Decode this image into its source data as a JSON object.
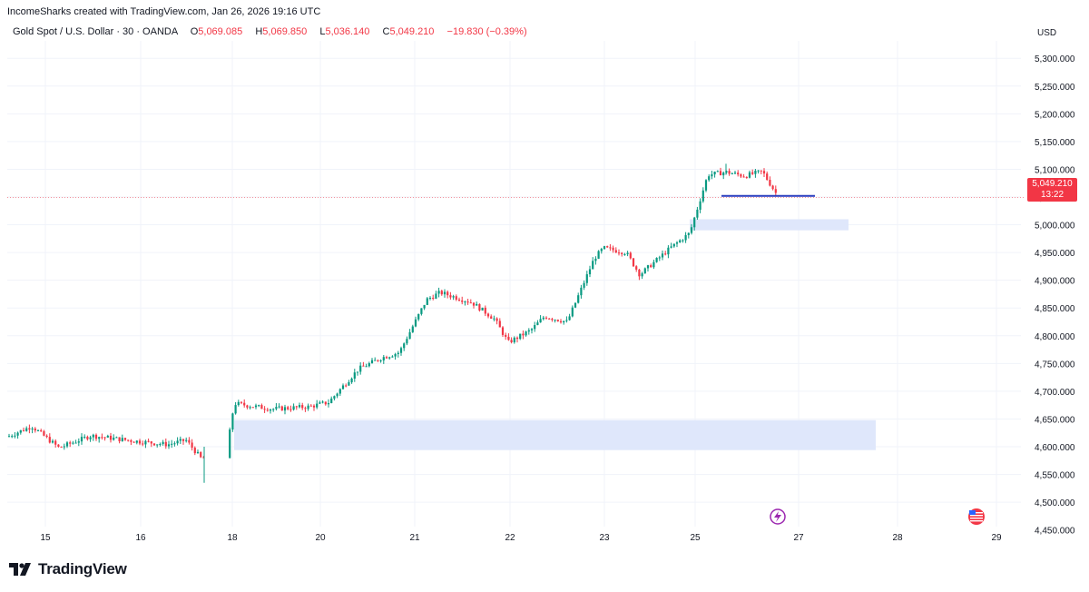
{
  "header": {
    "credit": "IncomeSharks created with TradingView.com, Jan 26, 2026 19:16 UTC",
    "symbol": "Gold Spot / U.S. Dollar · 30 · OANDA",
    "open_label": "O",
    "open": "5,069.085",
    "high_label": "H",
    "high": "5,069.850",
    "low_label": "L",
    "low": "5,036.140",
    "close_label": "C",
    "close": "5,049.210",
    "change": "−19.830 (−0.39%)",
    "currency": "USD"
  },
  "price_box": {
    "price": "5,049.210",
    "countdown": "13:22"
  },
  "brand": {
    "name": "TradingView"
  },
  "colors": {
    "up": "#089981",
    "down": "#f23645",
    "zone": "#dfe7fb",
    "level_line": "#2a3dbf",
    "grid": "#f0f3fa"
  },
  "chart_data": {
    "type": "candlestick",
    "ylim": [
      4425,
      5310
    ],
    "y_ticks": [
      "4,450.000",
      "4,500.000",
      "4,550.000",
      "4,600.000",
      "4,650.000",
      "4,700.000",
      "4,750.000",
      "4,800.000",
      "4,850.000",
      "4,900.000",
      "4,950.000",
      "5,000.000",
      "5,050.000",
      "5,100.000",
      "5,150.000",
      "5,200.000",
      "5,250.000",
      "5,300.000"
    ],
    "x_ticks": [
      "15",
      "16",
      "18",
      "20",
      "21",
      "22",
      "23",
      "25",
      "27",
      "28",
      "29"
    ],
    "price_path": [
      {
        "t": "Jan 14 late",
        "p": 4618
      },
      {
        "t": "Jan 14 end",
        "p": 4637
      },
      {
        "t": "Jan 15",
        "p": 4598
      },
      {
        "t": "Jan 15 mid",
        "p": 4620
      },
      {
        "t": "Jan 16",
        "p": 4610
      },
      {
        "t": "Jan 16 mid",
        "p": 4604
      },
      {
        "t": "Jan 16 late",
        "p": 4612
      },
      {
        "t": "Jan 16 close",
        "p": 4578
      },
      {
        "t": "Jan 16 end",
        "p": 4593
      },
      {
        "t": "Jan 18 open",
        "p": 4678
      },
      {
        "t": "Jan 19",
        "p": 4668
      },
      {
        "t": "Jan 19 end",
        "p": 4672
      },
      {
        "t": "Jan 20",
        "p": 4680
      },
      {
        "t": "Jan 20 mid",
        "p": 4740
      },
      {
        "t": "Jan 20 late",
        "p": 4760
      },
      {
        "t": "Jan 21 early",
        "p": 4770
      },
      {
        "t": "Jan 21",
        "p": 4865
      },
      {
        "t": "Jan 21 mid",
        "p": 4878
      },
      {
        "t": "Jan 21 late",
        "p": 4860
      },
      {
        "t": "Jan 22 early",
        "p": 4830
      },
      {
        "t": "Jan 22",
        "p": 4788
      },
      {
        "t": "Jan 22 mid",
        "p": 4810
      },
      {
        "t": "Jan 22 late",
        "p": 4835
      },
      {
        "t": "Jan 23 early",
        "p": 4825
      },
      {
        "t": "Jan 23",
        "p": 4940
      },
      {
        "t": "Jan 23 mid",
        "p": 4958
      },
      {
        "t": "Jan 23 late",
        "p": 4950
      },
      {
        "t": "Jan 23 close",
        "p": 4910
      },
      {
        "t": "Jan 23 end",
        "p": 4960
      },
      {
        "t": "Jan 25 early",
        "p": 4985
      },
      {
        "t": "Jan 25",
        "p": 5090
      },
      {
        "t": "Jan 25 mid",
        "p": 5095
      },
      {
        "t": "Jan 26",
        "p": 5088
      },
      {
        "t": "Jan 26 mid",
        "p": 5096
      },
      {
        "t": "Jan 26 last",
        "p": 5049
      }
    ],
    "zones": [
      {
        "from_t": "Jan 18 open",
        "to_t": "Jan 27 late",
        "low": 4594,
        "high": 4648
      },
      {
        "from_t": "Jan 25 early",
        "to_t": "Jan 27 mid",
        "low": 4990,
        "high": 5010
      }
    ],
    "level_line": {
      "price": 5052,
      "from_t": "Jan 25 mid",
      "to_t": "Jan 27"
    },
    "last_price": 5049.21,
    "low_wick": 4535,
    "high_wick": 5110
  }
}
